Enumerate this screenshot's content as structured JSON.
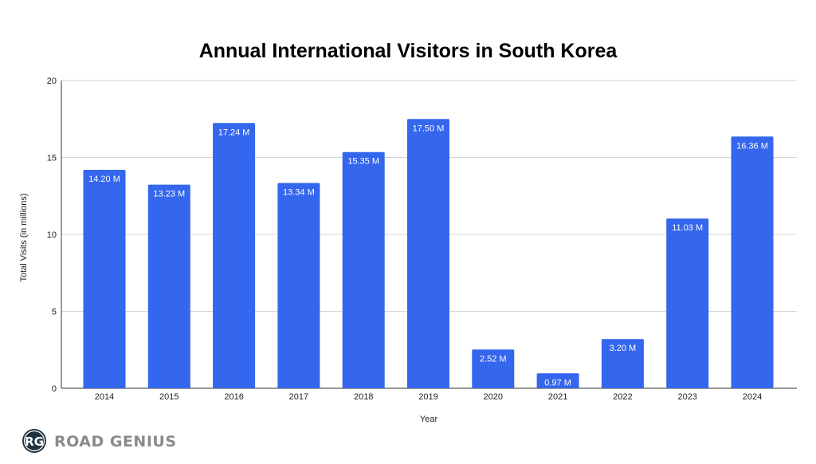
{
  "chart_data": {
    "type": "bar",
    "title": "Annual International Visitors in South Korea",
    "xlabel": "Year",
    "ylabel": "Total Visits (in millions)",
    "ylim": [
      0,
      20
    ],
    "yticks": [
      0,
      5,
      10,
      15,
      20
    ],
    "grid": true,
    "categories": [
      "2014",
      "2015",
      "2016",
      "2017",
      "2018",
      "2019",
      "2020",
      "2021",
      "2022",
      "2023",
      "2024"
    ],
    "values": [
      14.2,
      13.23,
      17.24,
      13.34,
      15.35,
      17.5,
      2.52,
      0.97,
      3.2,
      11.03,
      16.36
    ],
    "data_labels": [
      "14.20 M",
      "13.23 M",
      "17.24 M",
      "13.34 M",
      "15.35 M",
      "17.50 M",
      "2.52 M",
      "0.97 M",
      "3.20 M",
      "11.03 M",
      "16.36 M"
    ],
    "bar_color": "#3466EE"
  },
  "logo": {
    "initials": "RG",
    "text": "ROAD GENIUS",
    "circle_color": "#1f3140"
  }
}
